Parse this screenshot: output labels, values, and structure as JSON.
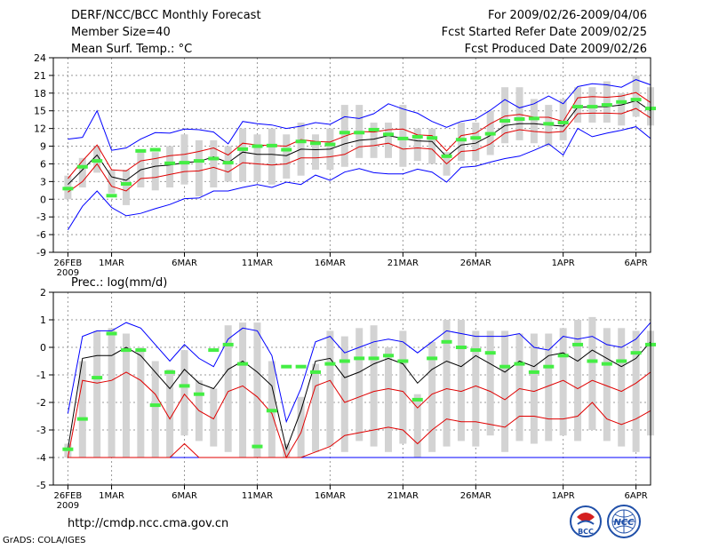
{
  "header": {
    "title": "DERF/NCC/BCC Monthly Forecast",
    "member_size": "Member Size=40",
    "variable": "Mean Surf. Temp.: °C",
    "period": "For 2009/02/26-2009/04/06",
    "started": "Fcst Started Refer Date 2009/02/25",
    "produced": "Fcst Produced Date 2009/02/26"
  },
  "footer": {
    "url": "http://cmdp.ncc.cma.gov.cn",
    "credit": "GrADS: COLA/IGES",
    "logo_bcc": "BCC",
    "logo_ncc": "NCC"
  },
  "colors": {
    "envelope": "#0000ff",
    "spread": "#e00000",
    "mean": "#000000",
    "observed": "#44ee44",
    "box": "#d3d3d3",
    "grid": "#999999"
  },
  "chart_data": [
    {
      "type": "line",
      "title": "Mean Surf. Temp.: °C",
      "x_ticks": [
        "26FEB\n2009",
        "1MAR",
        "6MAR",
        "11MAR",
        "16MAR",
        "21MAR",
        "26MAR",
        "1APR",
        "6APR"
      ],
      "x_tick_days": [
        0,
        3,
        8,
        13,
        18,
        23,
        28,
        34,
        39
      ],
      "x_range": [
        -1,
        40
      ],
      "ylim": [
        -9,
        24
      ],
      "yticks": [
        -9,
        -6,
        -3,
        0,
        3,
        6,
        9,
        12,
        15,
        18,
        21,
        24
      ],
      "grid": true,
      "series": [
        {
          "name": "upper",
          "values": [
            10.2,
            10.5,
            15,
            8.3,
            8.7,
            10.2,
            11.3,
            11.2,
            11.9,
            11.8,
            11.4,
            9.4,
            13.2,
            12.8,
            12.6,
            12,
            12.4,
            13,
            12.7,
            14,
            13.7,
            14.5,
            16.2,
            15.3,
            14.6,
            13.2,
            12.2,
            13.2,
            13.6,
            15.1,
            16.9,
            15.5,
            16.2,
            17.5,
            16.2,
            19.1,
            19.6,
            19.4,
            19,
            20.3,
            19.4
          ]
        },
        {
          "name": "hi",
          "values": [
            3.5,
            6.5,
            9.2,
            5,
            4.8,
            6.5,
            6.9,
            7.4,
            7.6,
            8.1,
            8.7,
            7.5,
            9.5,
            9.2,
            9.1,
            9,
            10.1,
            9.8,
            9.7,
            10.7,
            11.5,
            11.4,
            11.8,
            11.9,
            10.9,
            10.8,
            8.2,
            10.8,
            11.2,
            12.8,
            14.1,
            14.4,
            13.9,
            13.9,
            13.2,
            17.2,
            17.4,
            17.3,
            17.5,
            18.1,
            16.4
          ]
        },
        {
          "name": "mean",
          "values": [
            2.5,
            5,
            7.5,
            3.8,
            3.2,
            5,
            5.6,
            5.8,
            6.2,
            6.4,
            7.2,
            6.2,
            8,
            7.6,
            7.6,
            7.4,
            8.5,
            8.4,
            8.5,
            9.4,
            10,
            10.2,
            10.8,
            10.3,
            9.9,
            9.8,
            7.2,
            9.2,
            9.5,
            10.8,
            12.5,
            12.8,
            12.8,
            12.6,
            12.4,
            15.6,
            15.7,
            15.7,
            16,
            16.7,
            15
          ]
        },
        {
          "name": "lo",
          "values": [
            1.2,
            3,
            6,
            2.2,
            1.4,
            3.5,
            3.7,
            4.2,
            4.7,
            4.8,
            5.4,
            4.6,
            6.2,
            6,
            5.8,
            6,
            7,
            7,
            7.2,
            7.6,
            8.9,
            9.1,
            9.5,
            8.5,
            8.7,
            8.5,
            6,
            8.1,
            8.3,
            9.4,
            11.2,
            11.8,
            11.5,
            11.3,
            11.5,
            14.5,
            14.6,
            14.6,
            14.5,
            15.4,
            13.8
          ]
        },
        {
          "name": "lower",
          "values": [
            -5.2,
            -1.2,
            1.4,
            -1.4,
            -2.8,
            -2.4,
            -1.6,
            -0.9,
            0.1,
            0.2,
            1.4,
            1.4,
            2,
            2.5,
            2,
            2.9,
            2.5,
            4.1,
            3.2,
            4.6,
            5.2,
            4.5,
            4.3,
            4.3,
            5.1,
            4.6,
            2.9,
            5.4,
            5.6,
            6.3,
            6.9,
            7.3,
            8.3,
            9.4,
            7.5,
            12,
            10.6,
            11.2,
            11.7,
            12.3,
            10.3
          ]
        },
        {
          "name": "box_low",
          "values": [
            0,
            2,
            4.5,
            1,
            -1,
            2,
            1.5,
            2,
            2.5,
            0.5,
            2,
            3,
            3,
            3,
            2.5,
            3.5,
            4,
            5,
            5,
            5.5,
            7,
            7,
            7,
            5.5,
            6.5,
            6,
            4,
            6.5,
            6.5,
            7.5,
            9.5,
            10,
            9.5,
            9,
            10,
            13,
            13,
            13,
            12.5,
            14,
            12.5
          ]
        },
        {
          "name": "box_high",
          "values": [
            4,
            7,
            9,
            5,
            5,
            8,
            8,
            9,
            11,
            10,
            10,
            9,
            12,
            11,
            12,
            11,
            13,
            11,
            12,
            16,
            16,
            13,
            13,
            16,
            12,
            12,
            8,
            13,
            13,
            15,
            19,
            19,
            17,
            16,
            17,
            19,
            19,
            20,
            18,
            21,
            19
          ]
        },
        {
          "name": "observed",
          "values": [
            1.8,
            5.5,
            6.5,
            0.6,
            2.6,
            8.2,
            8.4,
            6.1,
            6.2,
            6.5,
            6.9,
            6.2,
            8.5,
            9,
            9.1,
            8.4,
            9.8,
            9.5,
            9.3,
            11.3,
            11.3,
            11.8,
            11,
            10.3,
            10.6,
            10.4,
            7.3,
            10.1,
            10.4,
            11.1,
            13.3,
            13.6,
            13.7,
            12.8,
            13,
            15.7,
            15.7,
            16,
            16.5,
            16.9,
            15.4
          ]
        }
      ]
    },
    {
      "type": "line",
      "title": "Prec.: log(mm/d)",
      "x_ticks": [
        "26FEB\n2009",
        "1MAR",
        "6MAR",
        "11MAR",
        "16MAR",
        "21MAR",
        "26MAR",
        "1APR",
        "6APR"
      ],
      "x_tick_days": [
        0,
        3,
        8,
        13,
        18,
        23,
        28,
        34,
        39
      ],
      "x_range": [
        -1,
        40
      ],
      "ylim": [
        -5,
        2
      ],
      "yticks": [
        -5,
        -4,
        -3,
        -2,
        -1,
        0,
        1,
        2
      ],
      "grid": true,
      "series": [
        {
          "name": "upper",
          "values": [
            -2.4,
            0.4,
            0.6,
            0.6,
            0.9,
            0.7,
            0.1,
            -0.5,
            0.1,
            -0.4,
            -0.7,
            0.3,
            0.7,
            0.6,
            -0.3,
            -2.7,
            -1.5,
            0.2,
            0.4,
            -0.2,
            0,
            0.2,
            0.3,
            0.2,
            -0.2,
            0.2,
            0.6,
            0.5,
            0.4,
            0.4,
            0.4,
            0.5,
            0,
            -0.1,
            0.4,
            0.3,
            0.4,
            0.1,
            0,
            0.3,
            0.9
          ]
        },
        {
          "name": "mean",
          "values": [
            -3.7,
            -0.4,
            -0.3,
            -0.3,
            0,
            -0.3,
            -0.9,
            -1.5,
            -0.8,
            -1.3,
            -1.5,
            -0.8,
            -0.5,
            -0.9,
            -1.4,
            -3.7,
            -2.3,
            -0.5,
            -0.4,
            -1.1,
            -0.9,
            -0.6,
            -0.4,
            -0.6,
            -1.3,
            -0.8,
            -0.5,
            -0.7,
            -0.3,
            -0.6,
            -0.9,
            -0.5,
            -0.7,
            -0.3,
            -0.2,
            -0.5,
            -0.1,
            -0.4,
            -0.7,
            -0.4,
            0.2
          ]
        },
        {
          "name": "hi",
          "values": [
            -4,
            -1.2,
            -1.3,
            -1.2,
            -0.9,
            -1.2,
            -1.7,
            -2.6,
            -1.7,
            -2.3,
            -2.6,
            -1.6,
            -1.4,
            -1.8,
            -2.4,
            -4,
            -3.1,
            -1.4,
            -1.2,
            -2,
            -1.8,
            -1.6,
            -1.5,
            -1.6,
            -2.2,
            -1.7,
            -1.5,
            -1.6,
            -1.4,
            -1.6,
            -1.9,
            -1.5,
            -1.6,
            -1.4,
            -1.2,
            -1.5,
            -1.2,
            -1.4,
            -1.6,
            -1.3,
            -0.9
          ]
        },
        {
          "name": "lo",
          "values": [
            -4,
            -4,
            -4,
            -4,
            -4,
            -4,
            -4,
            -4,
            -3.5,
            -4,
            -4,
            -4,
            -4,
            -4,
            -4,
            -4,
            -4,
            -3.8,
            -3.6,
            -3.2,
            -3.1,
            -3,
            -2.9,
            -3,
            -3.5,
            -3,
            -2.6,
            -2.7,
            -2.7,
            -2.8,
            -2.9,
            -2.5,
            -2.5,
            -2.6,
            -2.6,
            -2.5,
            -2,
            -2.6,
            -2.8,
            -2.6,
            -2.3
          ]
        },
        {
          "name": "lower",
          "values": [
            -4,
            -4,
            -4,
            -4,
            -4,
            -4,
            -4,
            -4,
            -4,
            -4,
            -4,
            -4,
            -4,
            -4,
            -4,
            -4,
            -4,
            -4,
            -4,
            -4,
            -4,
            -4,
            -4,
            -4,
            -4,
            -4,
            -4,
            -4,
            -4,
            -4,
            -4,
            -4,
            -4,
            -4,
            -4,
            -4,
            -4,
            -4,
            -4,
            -4,
            -4
          ]
        },
        {
          "name": "box_low",
          "values": [
            -4,
            -4,
            -4,
            -4,
            -4,
            -4,
            -4,
            -4,
            -3.2,
            -3.4,
            -3.6,
            -3.8,
            -4,
            -4,
            -4,
            -4,
            -4,
            -3.8,
            -3.6,
            -3.8,
            -3.4,
            -3.6,
            -3.8,
            -3.5,
            -4,
            -3.8,
            -3.6,
            -3.4,
            -3.6,
            -3.2,
            -3.8,
            -3.4,
            -3.5,
            -3.4,
            -3.2,
            -3.4,
            -3,
            -3.4,
            -3.6,
            -3.8,
            -3.2
          ]
        },
        {
          "name": "box_high",
          "values": [
            -3.5,
            -0.5,
            0.6,
            0.7,
            0.5,
            0,
            -0.5,
            -0.8,
            -0.1,
            -1.2,
            -1.5,
            0.8,
            0.9,
            0.9,
            -0.5,
            -3.5,
            -1.8,
            -0.6,
            0.6,
            0.4,
            0.7,
            0.8,
            0,
            0.6,
            -1.7,
            0.2,
            1,
            1,
            0.6,
            0.6,
            0.6,
            0.5,
            0.5,
            0.5,
            0.7,
            1,
            1.1,
            0.7,
            0.7,
            0.6,
            0.6
          ]
        },
        {
          "name": "observed",
          "values": [
            -3.7,
            -2.6,
            -1.1,
            0.5,
            -0.1,
            -0.1,
            -2.1,
            -0.9,
            -1.4,
            -1.7,
            -0.1,
            0.1,
            -0.6,
            -3.6,
            -2.3,
            -0.7,
            -0.7,
            -0.9,
            -0.6,
            -0.5,
            -0.4,
            -0.4,
            -0.3,
            -0.5,
            -1.9,
            -0.4,
            0.2,
            0,
            -0.1,
            -0.2,
            -0.7,
            -0.6,
            -0.9,
            -0.7,
            -0.3,
            0.1,
            -0.5,
            -0.6,
            -0.5,
            -0.2,
            0.1
          ]
        }
      ]
    }
  ]
}
